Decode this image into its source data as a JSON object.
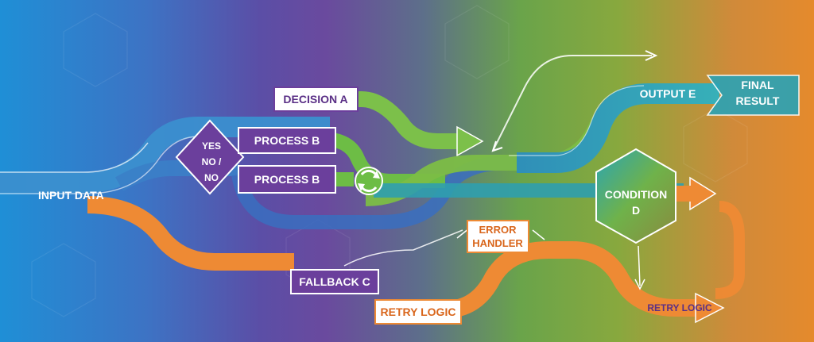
{
  "diagram": {
    "nodes": {
      "input": "INPUT DATA",
      "decision_a": "DECISION A",
      "diamond_yes": "YES",
      "diamond_no_slash": "NO /",
      "diamond_no": "NO",
      "process_b_top": "PROCESS B",
      "process_b_bottom": "PROCESS B",
      "output_e": "OUTPUT E",
      "final_line1": "FINAL",
      "final_line2": "RESULT",
      "condition_line1": "CONDITION",
      "condition_line2": "D",
      "error_line1": "ERROR",
      "error_line2": "HANDLER",
      "fallback": "FALLBACK C",
      "retry_box": "RETRY LOGIC",
      "retry_arrow": "RETRY LOGIC"
    },
    "colors": {
      "blue": "#2a8fd0",
      "teal": "#2aa3b6",
      "green": "#6cc34a",
      "purple": "#6b3f9c",
      "orange": "#ee8a34",
      "white": "#ffffff"
    }
  }
}
